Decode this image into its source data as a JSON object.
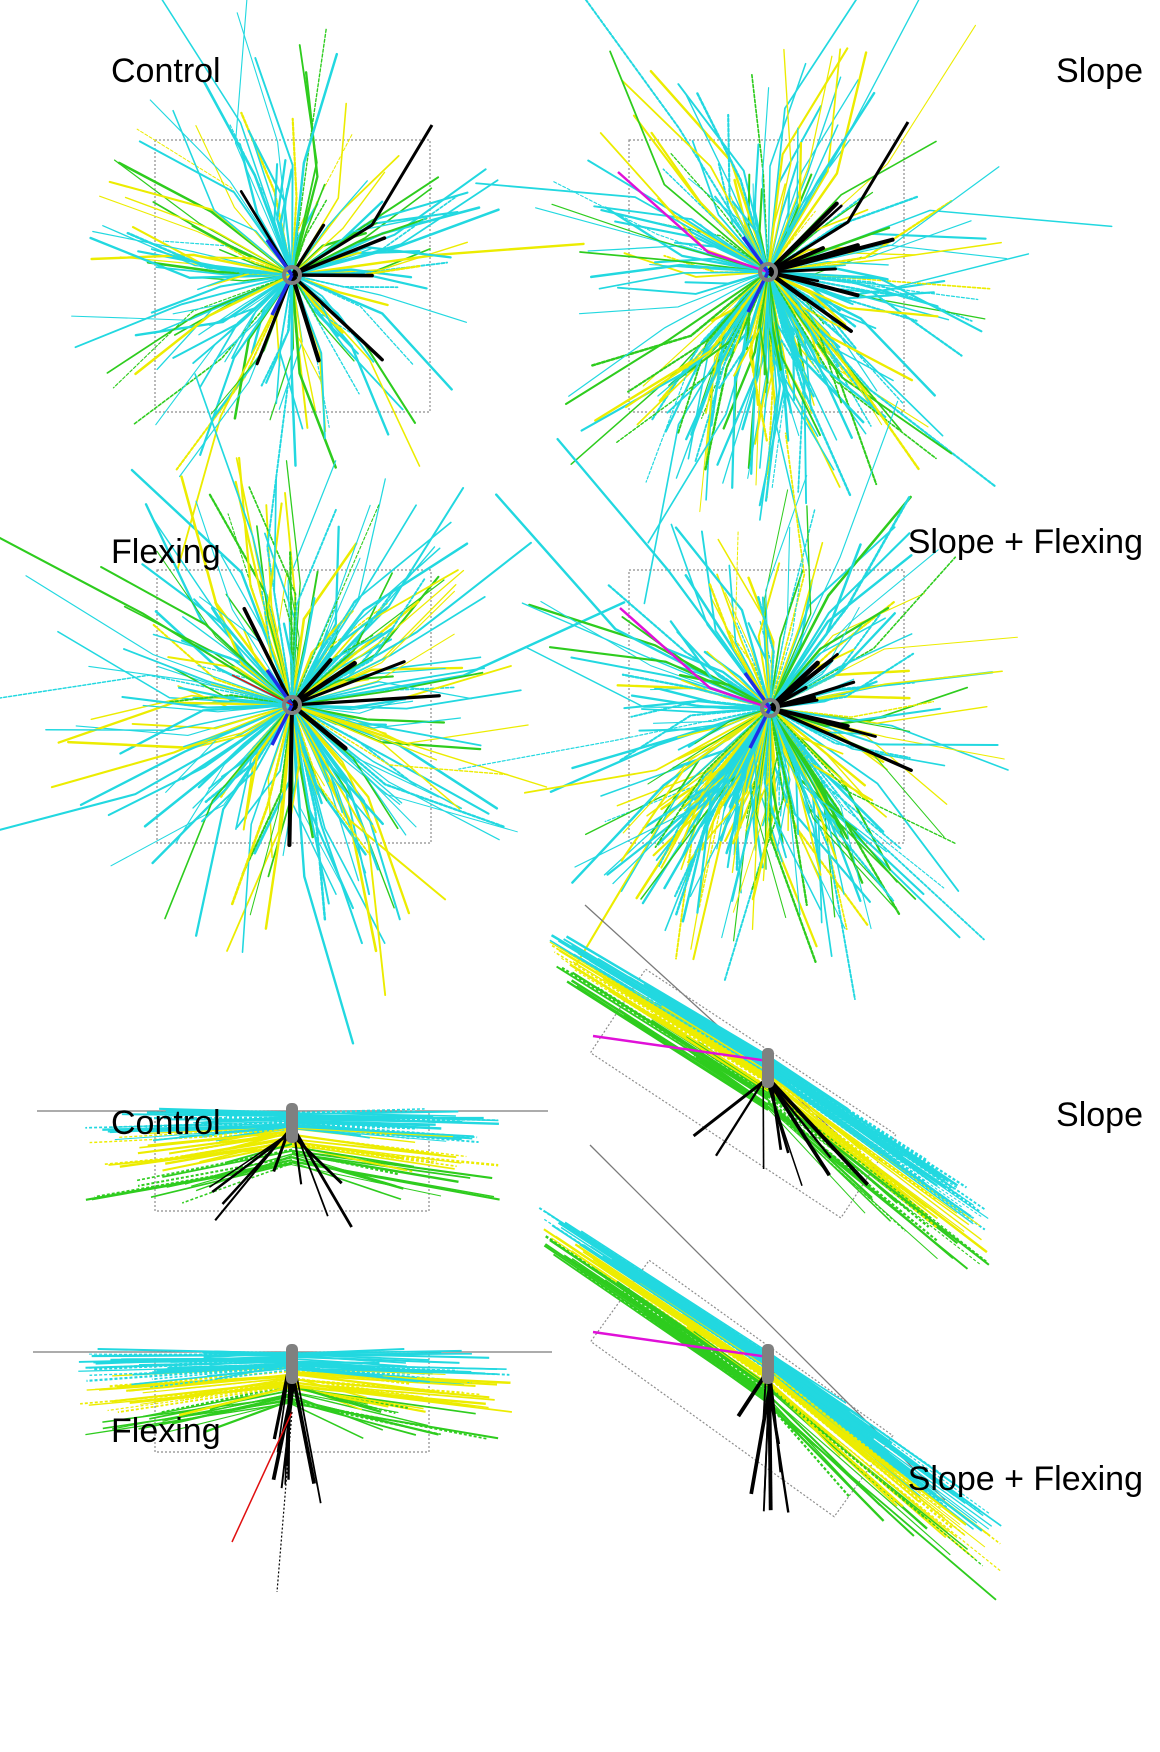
{
  "panels": [
    {
      "id": "top-control",
      "label": "Control",
      "view": "top",
      "slope": false,
      "flex": false
    },
    {
      "id": "top-slope",
      "label": "Slope",
      "view": "top",
      "slope": true,
      "flex": false
    },
    {
      "id": "top-flexing",
      "label": "Flexing",
      "view": "top",
      "slope": false,
      "flex": true
    },
    {
      "id": "top-slope-flexing",
      "label": "Slope + Flexing",
      "view": "top",
      "slope": true,
      "flex": true
    },
    {
      "id": "side-control",
      "label": "Control",
      "view": "side",
      "slope": false,
      "flex": false
    },
    {
      "id": "side-slope",
      "label": "Slope",
      "view": "side",
      "slope": true,
      "flex": false
    },
    {
      "id": "side-flexing",
      "label": "Flexing",
      "view": "side",
      "slope": false,
      "flex": true
    },
    {
      "id": "side-slope-flexing",
      "label": "Slope + Flexing",
      "view": "side",
      "slope": true,
      "flex": true
    }
  ],
  "colors": {
    "cyan": "#22d8e0",
    "yellow": "#ecec00",
    "green": "#2ecc1e",
    "black": "#000000",
    "blue": "#1e2de6",
    "magenta": "#e010d8",
    "red": "#e01010",
    "box": "#8c8c8c",
    "ground": "#7a7a7a",
    "stem": "#808080"
  }
}
